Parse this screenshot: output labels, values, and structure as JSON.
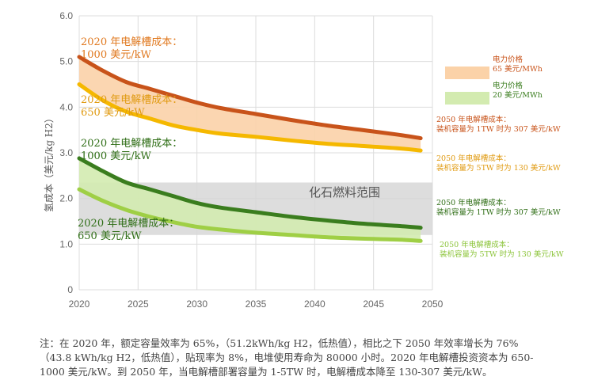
{
  "chart_data": {
    "type": "line",
    "ylabel": "氢成本（美元/kg H2）",
    "xlim": [
      2020,
      2050
    ],
    "ylim": [
      0,
      6.0
    ],
    "x_ticks": [
      "2020",
      "2025",
      "2030",
      "2035",
      "2040",
      "2045",
      "2050"
    ],
    "y_ticks": [
      "0",
      "1.0",
      "2.0",
      "3.0",
      "4.0",
      "5.0",
      "6.0"
    ],
    "x": [
      2020,
      2022,
      2024,
      2026,
      2028,
      2030,
      2032,
      2035,
      2038,
      2041,
      2044,
      2047,
      2049
    ],
    "series": [
      {
        "name": "2050 年电解槽成本：装机容量为 1TW 时为 307 美元/kW",
        "color": "#c8531a",
        "values": [
          5.1,
          4.8,
          4.55,
          4.4,
          4.25,
          4.1,
          3.98,
          3.85,
          3.72,
          3.6,
          3.5,
          3.4,
          3.32
        ]
      },
      {
        "name": "2050 年电解槽成本：装机容量为 5TW 时为 130 美元/kW",
        "color": "#f5b800",
        "values": [
          4.5,
          4.15,
          3.9,
          3.75,
          3.6,
          3.5,
          3.42,
          3.35,
          3.27,
          3.2,
          3.15,
          3.1,
          3.05
        ]
      },
      {
        "name": "2050 年电解槽成本：装机容量为 1TW 时为 307 美元/kW",
        "color": "#3a7d1e",
        "values": [
          2.88,
          2.6,
          2.35,
          2.2,
          2.05,
          1.9,
          1.8,
          1.7,
          1.6,
          1.52,
          1.45,
          1.4,
          1.36
        ]
      },
      {
        "name": "2050 年电解槽成本：装机容量为 5TW 时为 130 美元/kW",
        "color": "#9fcf45",
        "values": [
          2.2,
          1.95,
          1.75,
          1.6,
          1.48,
          1.38,
          1.32,
          1.25,
          1.2,
          1.15,
          1.12,
          1.1,
          1.07
        ]
      }
    ],
    "bands": [
      {
        "label": "电力价格 65 美元/MWh",
        "color": "#fbd2a8",
        "between": [
          0,
          1
        ]
      },
      {
        "label": "电力价格 20 美元/MWh",
        "color": "#d3ebb0",
        "between": [
          2,
          3
        ]
      }
    ],
    "fossil_range": {
      "label": "化石燃料范围",
      "ymin": 1.2,
      "ymax": 2.35,
      "color": "#d7d7d7"
    }
  },
  "annotations": {
    "left_orange_1": {
      "line1": "2020 年电解槽成本：",
      "line2": "1000 美元/kW",
      "color": "#e0781e"
    },
    "left_orange_2": {
      "line1": "2020 年电解槽成本：",
      "line2": "650 美元/kW",
      "color": "#e09a10"
    },
    "left_green_1": {
      "line1": "2020 年电解槽成本：",
      "line2": "1000 美元/kW",
      "color": "#2f6e16"
    },
    "left_green_2": {
      "line1": "2020 年电解槽成本：",
      "line2": "650 美元/kW",
      "color": "#2f6e16"
    }
  },
  "legend": {
    "band_orange": {
      "line1": "电力价格",
      "line2": "65 美元/MWh",
      "color": "#c8531a"
    },
    "band_green": {
      "line1": "电力价格",
      "line2": "20 美元/MWh",
      "color": "#3a7d1e"
    },
    "right_labels": [
      {
        "line1": "2050 年电解槽成本：",
        "line2": "装机容量为 1TW 时为 307 美元/kW",
        "color": "#c8531a"
      },
      {
        "line1": "2050 年电解槽成本：",
        "line2": "装机容量为 5TW 时为 130 美元/kW",
        "color": "#e09a10"
      },
      {
        "line1": "2050 年电解槽成本：",
        "line2": "装机容量为 1TW 时为 307 美元/kW",
        "color": "#2f6e16"
      },
      {
        "line1": "2050 年电解槽成本：",
        "line2": "装机容量为 5TW 时为 130 美元/kW",
        "color": "#8cc43a"
      }
    ]
  },
  "note": {
    "line1": "注：在 2020 年，额定容量效率为 65%，（51.2kWh/kg H2，低热值），相比之下 2050 年效率增长为 76%",
    "line2": "（43.8 kWh/kg H2，低热值），贴现率为 8%，电堆使用寿命为 80000 小时。2020 年电解槽投资资本为 650-",
    "line3": "1000 美元/kW。到 2050 年，当电解槽部署容量为 1-5TW 时，电解槽成本降至 130-307 美元/kW。"
  }
}
